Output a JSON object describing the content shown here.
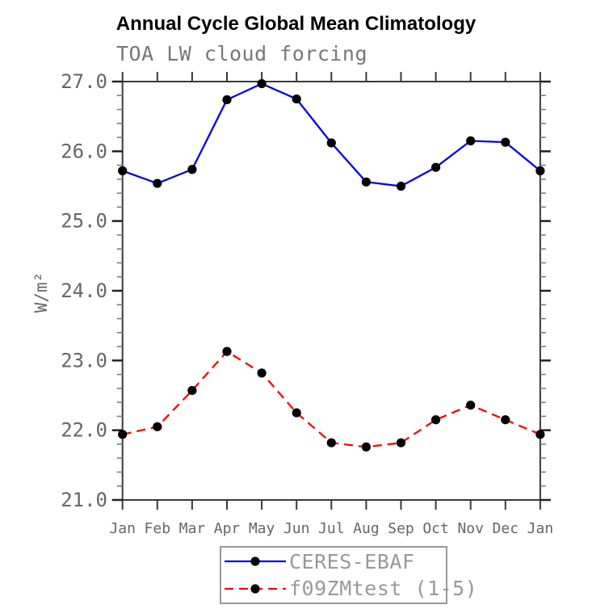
{
  "title": "Annual Cycle Global Mean Climatology",
  "subtitle": "TOA LW cloud forcing",
  "chart_data": {
    "type": "line",
    "categories": [
      "Jan",
      "Feb",
      "Mar",
      "Apr",
      "May",
      "Jun",
      "Jul",
      "Aug",
      "Sep",
      "Oct",
      "Nov",
      "Dec",
      "Jan"
    ],
    "xlabel": "",
    "ylabel": "W/m²",
    "ylim": [
      21.0,
      27.0
    ],
    "ytick_step": 1.0,
    "yminor_step": 0.2,
    "ytick_labels": [
      "21.0",
      "22.0",
      "23.0",
      "24.0",
      "25.0",
      "26.0",
      "27.0"
    ],
    "grid": false,
    "legend_position": "bottom-box",
    "series": [
      {
        "name": "CERES-EBAF",
        "line_style": "solid",
        "color": "#0000ee",
        "marker": "circle",
        "marker_color": "#000000",
        "values": [
          25.72,
          25.54,
          25.74,
          26.74,
          26.97,
          26.75,
          26.12,
          25.56,
          25.5,
          25.77,
          26.15,
          26.13,
          25.72
        ]
      },
      {
        "name": "f09ZMtest (1-5)",
        "line_style": "dashed",
        "color": "#ff0000",
        "marker": "circle",
        "marker_color": "#000000",
        "values": [
          21.94,
          22.05,
          22.57,
          23.13,
          22.82,
          22.25,
          21.82,
          21.76,
          21.82,
          22.15,
          22.36,
          22.15,
          21.94
        ]
      }
    ]
  },
  "colors": {
    "axis": "#3a3a3a",
    "major_tick": "#222222",
    "minor_tick": "#777777",
    "tick_label": "#666666",
    "axis_label": "#666666",
    "title": "#000000",
    "subtitle": "#777777",
    "legend_text": "#999999",
    "legend_border": "#999999",
    "background": "#ffffff"
  }
}
